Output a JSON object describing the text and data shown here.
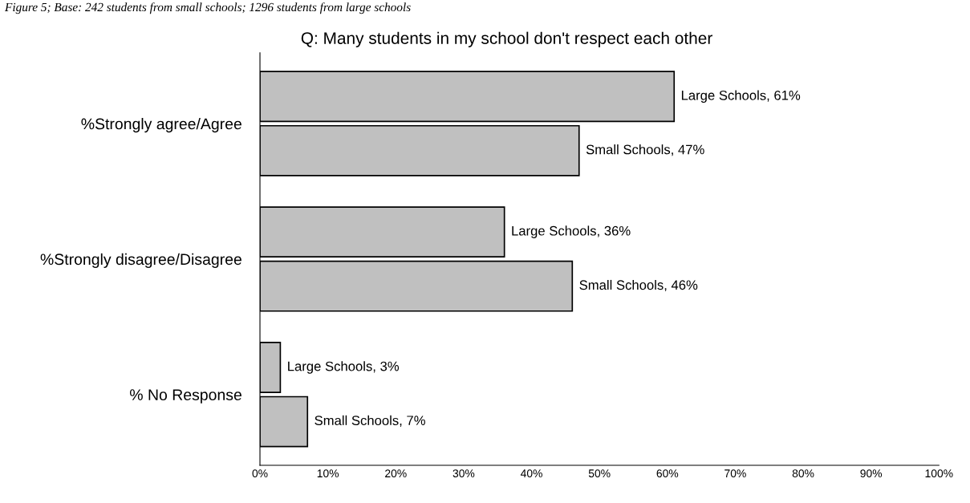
{
  "chart_data": {
    "type": "bar",
    "orientation": "horizontal",
    "title": "Q: Many students in my school don't respect each other",
    "annotations": [
      "Figure 5; Base: 242 students from small schools; 1296 students from large schools"
    ],
    "categories": [
      "%Strongly agree/Agree",
      "%Strongly disagree/Disagree",
      "% No Response"
    ],
    "series": [
      {
        "name": "Large Schools",
        "color": "#c0c0c0",
        "values": [
          61,
          36,
          3
        ],
        "value_labels": [
          ", 61%",
          ", 36%",
          ", 3%"
        ]
      },
      {
        "name": "Small Schools",
        "color": "#c0c0c0",
        "values": [
          47,
          46,
          7
        ],
        "value_labels": [
          ", 47%",
          ", 46%",
          ", 7%"
        ]
      }
    ],
    "xlim": [
      0,
      100
    ],
    "xticks": [
      {
        "value": 0,
        "label": "0%"
      },
      {
        "value": 10,
        "label": "10%"
      },
      {
        "value": 20,
        "label": "20%"
      },
      {
        "value": 30,
        "label": "30%"
      },
      {
        "value": 40,
        "label": "40%"
      },
      {
        "value": 50,
        "label": "50%"
      },
      {
        "value": 60,
        "label": "60%"
      },
      {
        "value": 70,
        "label": "70%"
      },
      {
        "value": 80,
        "label": "80%"
      },
      {
        "value": 90,
        "label": "90%"
      },
      {
        "value": 100,
        "label": "100%"
      }
    ],
    "grid": false,
    "legend": false
  }
}
